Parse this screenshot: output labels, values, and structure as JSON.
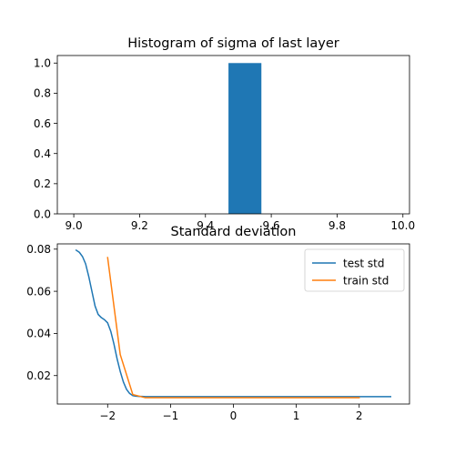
{
  "chart_data": [
    {
      "type": "bar",
      "title": "Histogram of sigma of last layer",
      "xlabel": "",
      "ylabel": "",
      "xlim": [
        8.95,
        10.02
      ],
      "ylim": [
        0,
        1.05
      ],
      "xticks": [
        9.0,
        9.2,
        9.4,
        9.6,
        9.8,
        10.0
      ],
      "xtick_labels": [
        "9.0",
        "9.2",
        "9.4",
        "9.6",
        "9.8",
        "10.0"
      ],
      "yticks": [
        0.0,
        0.2,
        0.4,
        0.6,
        0.8,
        1.0
      ],
      "ytick_labels": [
        "0.0",
        "0.2",
        "0.4",
        "0.6",
        "0.8",
        "1.0"
      ],
      "bins": [
        {
          "x0": 9.47,
          "x1": 9.57,
          "count": 1
        }
      ],
      "color": "#1f77b4",
      "grid": false
    },
    {
      "type": "line",
      "title": "Standard deviation",
      "xlabel": "",
      "ylabel": "",
      "xlim": [
        -2.8,
        2.8
      ],
      "ylim": [
        0.0065,
        0.0825
      ],
      "xticks": [
        -2,
        -1,
        0,
        1,
        2
      ],
      "xtick_labels": [
        "−2",
        "−1",
        "0",
        "1",
        "2"
      ],
      "yticks": [
        0.02,
        0.04,
        0.06,
        0.08
      ],
      "ytick_labels": [
        "0.02",
        "0.04",
        "0.06",
        "0.08"
      ],
      "legend_position": "top-right",
      "grid": false,
      "series": [
        {
          "name": "test std",
          "color": "#1f77b4",
          "x": [
            -2.5,
            -2.45,
            -2.4,
            -2.35,
            -2.3,
            -2.25,
            -2.2,
            -2.15,
            -2.1,
            -2.05,
            -2.0,
            -1.95,
            -1.9,
            -1.85,
            -1.8,
            -1.75,
            -1.7,
            -1.65,
            -1.6,
            -1.55,
            -1.5,
            -1.45,
            -1.4,
            -1.3,
            -1.2,
            -1.0,
            0.0,
            1.0,
            2.0,
            2.5
          ],
          "y": [
            0.0795,
            0.0785,
            0.0765,
            0.073,
            0.067,
            0.06,
            0.053,
            0.049,
            0.0475,
            0.0465,
            0.045,
            0.041,
            0.035,
            0.028,
            0.022,
            0.017,
            0.0135,
            0.0115,
            0.0105,
            0.0102,
            0.0101,
            0.0101,
            0.01,
            0.01,
            0.01,
            0.01,
            0.01,
            0.01,
            0.01,
            0.01
          ]
        },
        {
          "name": "train std",
          "color": "#ff7f0e",
          "x": [
            -2.0,
            -1.8,
            -1.6,
            -1.4,
            -1.2,
            -1.0,
            0.0,
            1.0,
            2.0
          ],
          "y": [
            0.076,
            0.03,
            0.011,
            0.0095,
            0.0095,
            0.0095,
            0.0095,
            0.0095,
            0.0095
          ]
        }
      ]
    }
  ]
}
